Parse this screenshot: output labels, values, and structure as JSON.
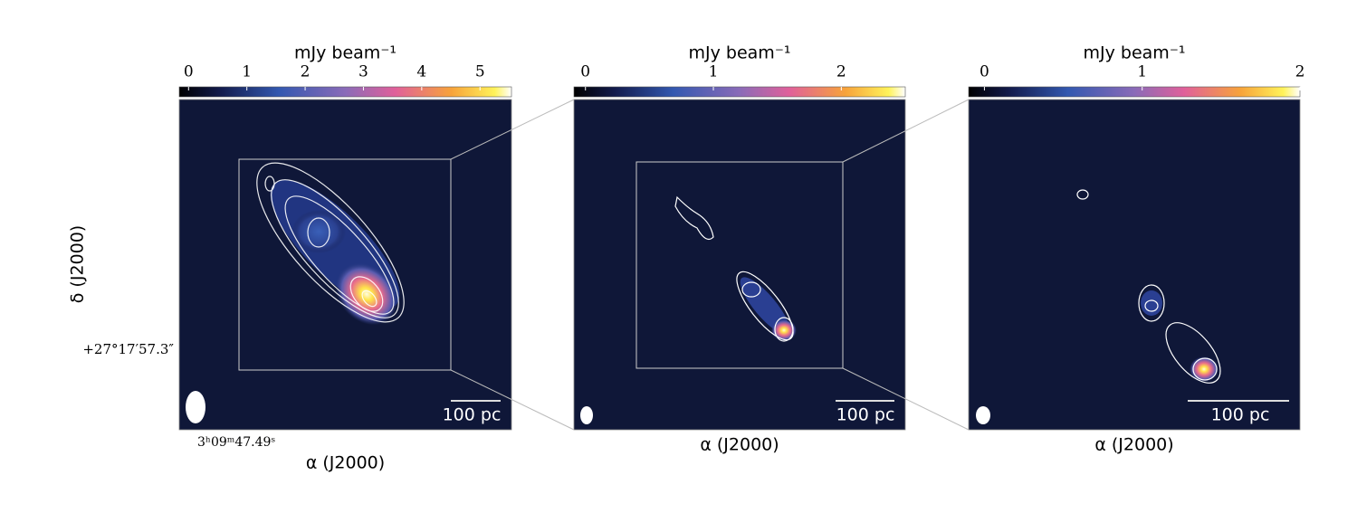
{
  "panels": [
    {
      "colorbar_label": "mJy beam⁻¹",
      "colorbar_lim": [
        -0.16,
        5.54
      ],
      "colorbar_ticks": [
        0,
        1,
        2,
        3,
        4,
        5
      ],
      "scalebar": "100 pc",
      "xlabel": "α (J2000)",
      "xtick": "3ʰ09ᵐ47.49ˢ",
      "ylabel": "δ (J2000)",
      "ytick": "+27°17′57.3″"
    },
    {
      "colorbar_label": "mJy beam⁻¹",
      "colorbar_lim": [
        -0.09,
        2.5
      ],
      "colorbar_ticks": [
        0,
        1,
        2
      ],
      "scalebar": "100 pc",
      "xlabel": "α (J2000)"
    },
    {
      "colorbar_label": "mJy beam⁻¹",
      "colorbar_lim": [
        -0.1,
        2.0
      ],
      "colorbar_ticks": [
        0,
        1,
        2
      ],
      "scalebar": "100 pc",
      "xlabel": "α (J2000)"
    }
  ]
}
